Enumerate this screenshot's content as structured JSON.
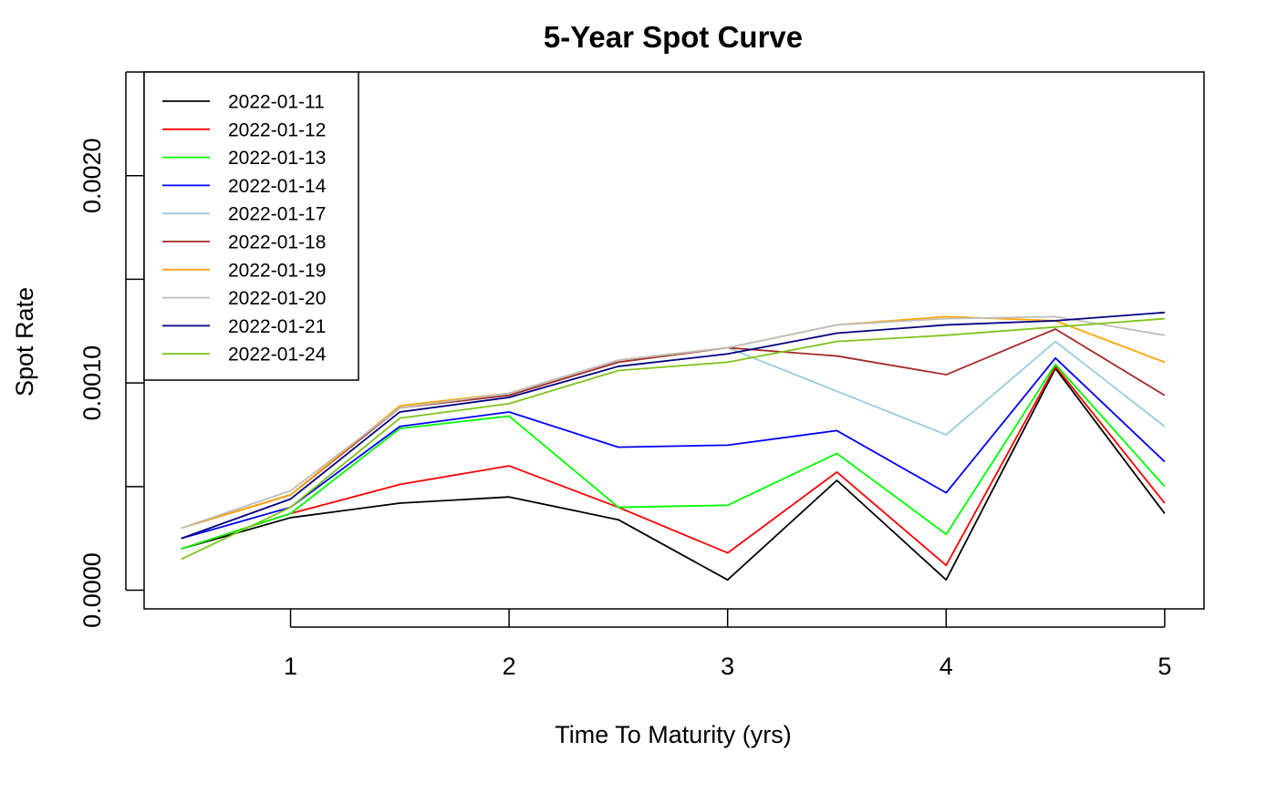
{
  "chart_data": {
    "type": "line",
    "title": "5-Year Spot Curve",
    "xlabel": "Time To Maturity (yrs)",
    "ylabel": "Spot Rate",
    "xlim": [
      0.33,
      5.18
    ],
    "ylim": [
      -9e-05,
      0.0025
    ],
    "x_ticks": [
      1,
      2,
      3,
      4,
      5
    ],
    "x_tick_labels": [
      "1",
      "2",
      "3",
      "4",
      "5"
    ],
    "y_ticks": [
      0.0,
      0.0005,
      0.001,
      0.0015,
      0.002,
      0.0025
    ],
    "y_tick_labels": [
      "0.0000",
      "",
      "0.0010",
      "",
      "0.0020",
      ""
    ],
    "legend_position": "top-left",
    "x": [
      0.5,
      1,
      1.5,
      2,
      2.5,
      3,
      3.5,
      4,
      4.5,
      5
    ],
    "series": [
      {
        "name": "2022-01-11",
        "color": "#000000",
        "values": [
          0.0002,
          0.00035,
          0.00042,
          0.00045,
          0.00034,
          5e-05,
          0.00053,
          5e-05,
          0.00107,
          0.00037
        ]
      },
      {
        "name": "2022-01-12",
        "color": "#ff0000",
        "values": [
          0.0002,
          0.00037,
          0.00051,
          0.0006,
          0.0004,
          0.00018,
          0.00057,
          0.00012,
          0.00108,
          0.00042
        ]
      },
      {
        "name": "2022-01-13",
        "color": "#00ff00",
        "values": [
          0.0002,
          0.00037,
          0.00078,
          0.00084,
          0.0004,
          0.00041,
          0.00066,
          0.00027,
          0.00109,
          0.0005
        ]
      },
      {
        "name": "2022-01-14",
        "color": "#0000ff",
        "values": [
          0.00025,
          0.0004,
          0.00079,
          0.00086,
          0.00069,
          0.0007,
          0.00077,
          0.00047,
          0.00112,
          0.00062
        ]
      },
      {
        "name": "2022-01-17",
        "color": "#99ccdd",
        "values": [
          0.0003,
          0.00046,
          0.00088,
          0.00094,
          0.0011,
          0.00117,
          0.00096,
          0.00075,
          0.0012,
          0.00079
        ]
      },
      {
        "name": "2022-01-18",
        "color": "#a52a2a",
        "values": [
          0.0003,
          0.00046,
          0.00088,
          0.00094,
          0.0011,
          0.00117,
          0.00113,
          0.00104,
          0.00126,
          0.00094
        ]
      },
      {
        "name": "2022-01-19",
        "color": "#ffa500",
        "values": [
          0.0003,
          0.00046,
          0.00089,
          0.00095,
          0.00111,
          0.00117,
          0.00128,
          0.00132,
          0.0013,
          0.0011
        ]
      },
      {
        "name": "2022-01-20",
        "color": "#bebebe",
        "values": [
          0.0003,
          0.00048,
          0.00088,
          0.00095,
          0.00111,
          0.00117,
          0.00128,
          0.00131,
          0.00132,
          0.00123
        ]
      },
      {
        "name": "2022-01-21",
        "color": "#000080",
        "values": [
          0.00025,
          0.00044,
          0.00086,
          0.00093,
          0.00108,
          0.00114,
          0.00124,
          0.00128,
          0.0013,
          0.00134
        ]
      },
      {
        "name": "2022-01-24",
        "color": "#7fc31c",
        "values": [
          0.00015,
          0.0004,
          0.00083,
          0.0009,
          0.00106,
          0.0011,
          0.0012,
          0.00123,
          0.00127,
          0.00131
        ]
      }
    ]
  }
}
